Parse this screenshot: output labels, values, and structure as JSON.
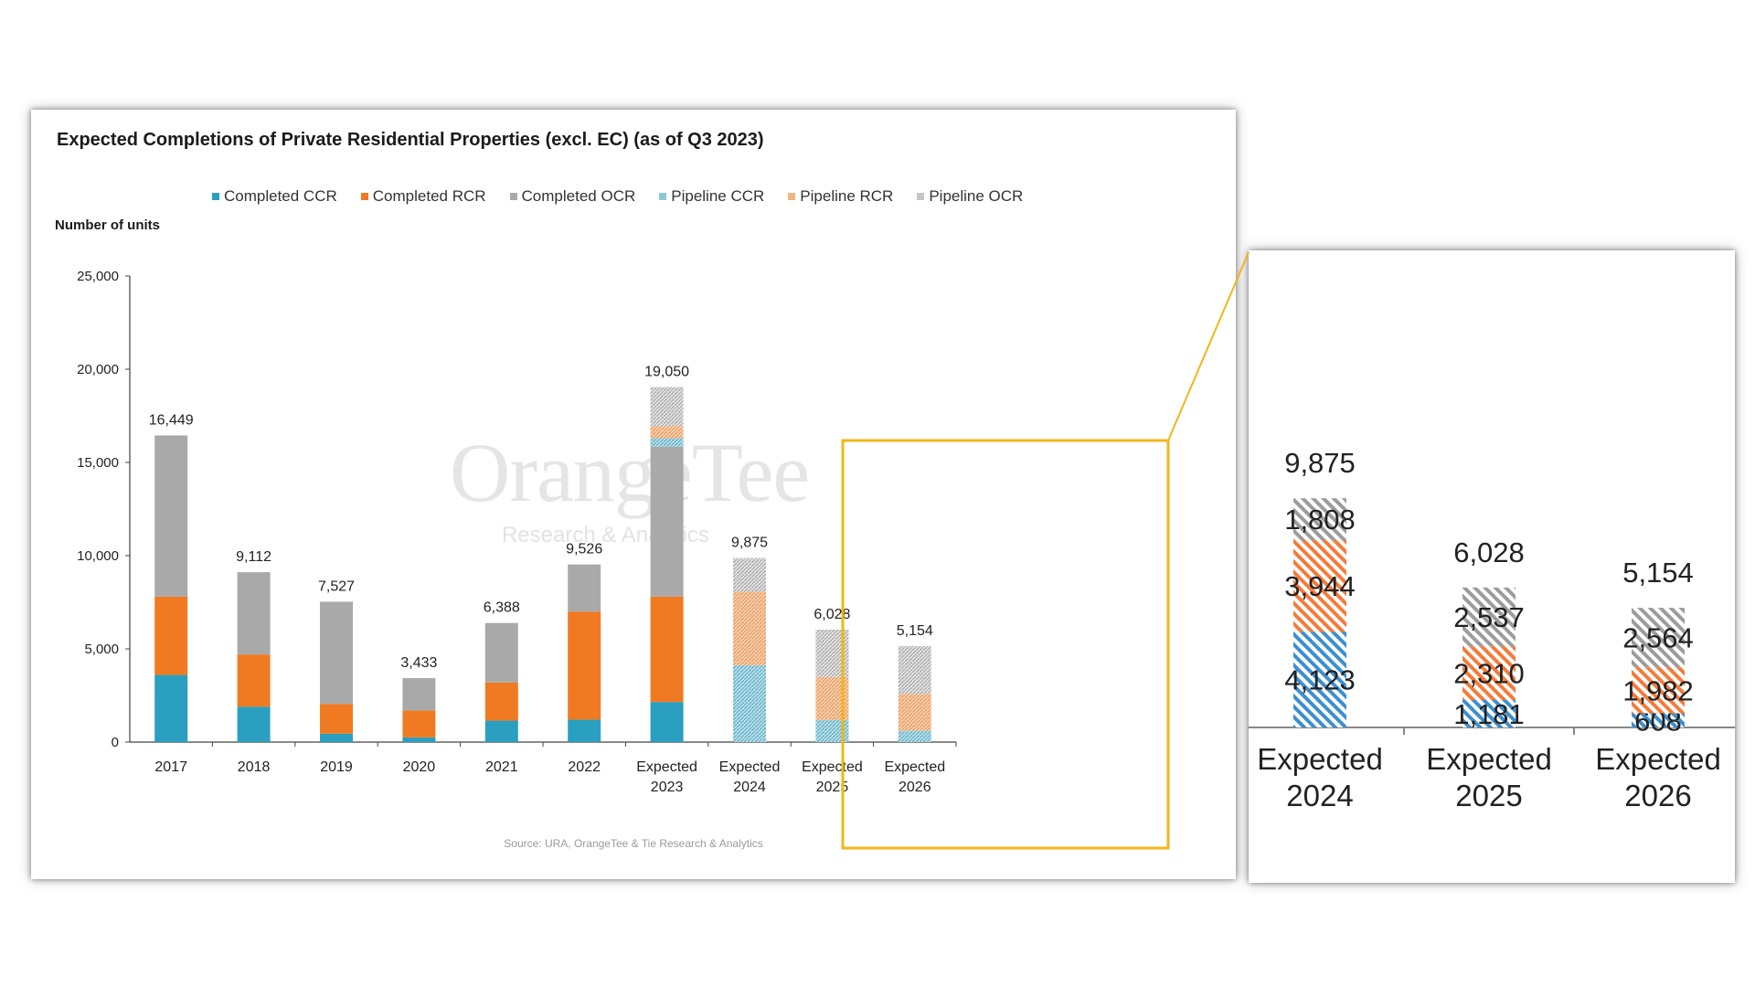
{
  "chart_data": [
    {
      "type": "bar",
      "stacked": true,
      "title": "Expected Completions of Private Residential Properties (excl. EC) (as of Q3 2023)",
      "ylabel": "Number of units",
      "ylim": [
        0,
        25000
      ],
      "yticks": [
        0,
        5000,
        10000,
        15000,
        20000,
        25000
      ],
      "ytick_labels": [
        "0",
        "5,000",
        "10,000",
        "15,000",
        "20,000",
        "25,000"
      ],
      "categories": [
        [
          "2017"
        ],
        [
          "2018"
        ],
        [
          "2019"
        ],
        [
          "2020"
        ],
        [
          "2021"
        ],
        [
          "2022"
        ],
        [
          "Expected",
          "2023"
        ],
        [
          "Expected",
          "2024"
        ],
        [
          "Expected",
          "2025"
        ],
        [
          "Expected",
          "2026"
        ]
      ],
      "series": [
        {
          "name": "Completed CCR",
          "color": "#2a9fbf",
          "pattern": "solid",
          "values": [
            3600,
            1900,
            450,
            250,
            1150,
            1200,
            2150,
            0,
            0,
            0
          ]
        },
        {
          "name": "Completed RCR",
          "color": "#f07a22",
          "pattern": "solid",
          "values": [
            4200,
            2800,
            1600,
            1450,
            2050,
            5800,
            5650,
            0,
            0,
            0
          ]
        },
        {
          "name": "Completed OCR",
          "color": "#a9a9a9",
          "pattern": "solid",
          "values": [
            8649,
            4412,
            5477,
            1733,
            3188,
            2526,
            8050,
            0,
            0,
            0
          ]
        },
        {
          "name": "Pipeline CCR",
          "color": "#8ec8d8",
          "pattern": "hatch",
          "values": [
            0,
            0,
            0,
            0,
            0,
            0,
            450,
            4123,
            1181,
            608
          ]
        },
        {
          "name": "Pipeline RCR",
          "color": "#f2b483",
          "pattern": "hatch",
          "values": [
            0,
            0,
            0,
            0,
            0,
            0,
            650,
            3944,
            2310,
            1982
          ]
        },
        {
          "name": "Pipeline OCR",
          "color": "#c6c6c6",
          "pattern": "hatch",
          "values": [
            0,
            0,
            0,
            0,
            0,
            0,
            2100,
            1808,
            2537,
            2564
          ]
        }
      ],
      "totals": [
        "16,449",
        "9,112",
        "7,527",
        "3,433",
        "6,388",
        "9,526",
        "19,050",
        "9,875",
        "6,028",
        "5,154"
      ],
      "legend_position": "top",
      "grid": false,
      "watermark": {
        "name": "OrangeTee",
        "tagline": "Research & Analytics"
      },
      "source": "Source: URA, OrangeTee & Tie Research & Analytics"
    },
    {
      "type": "bar",
      "stacked": true,
      "categories": [
        [
          "Expected",
          "2024"
        ],
        [
          "Expected",
          "2025"
        ],
        [
          "Expected",
          "2026"
        ]
      ],
      "series": [
        {
          "name": "Pipeline CCR",
          "color": "#3d8fcf",
          "values": [
            4123,
            1181,
            608
          ],
          "labels": [
            "4,123",
            "1,181",
            "608"
          ]
        },
        {
          "name": "Pipeline RCR",
          "color": "#f47b3a",
          "values": [
            3944,
            2310,
            1982
          ],
          "labels": [
            "3,944",
            "2,310",
            "1,982"
          ]
        },
        {
          "name": "Pipeline OCR",
          "color": "#9c9c9c",
          "values": [
            1808,
            2537,
            2564
          ],
          "labels": [
            "1,808",
            "2,537",
            "2,564"
          ]
        }
      ],
      "totals": [
        "9,875",
        "6,028",
        "5,154"
      ],
      "highlight_color": "#f2b619"
    }
  ]
}
